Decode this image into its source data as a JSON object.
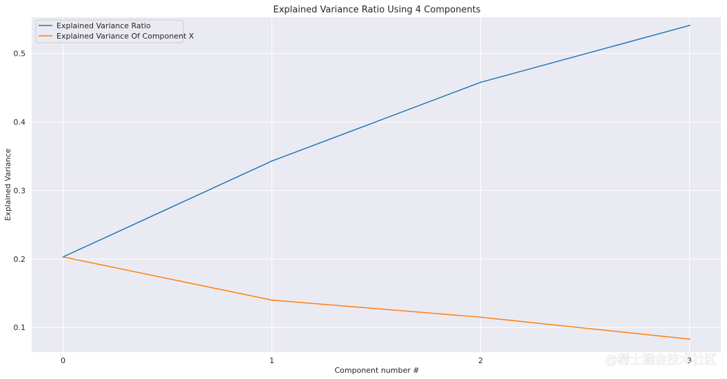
{
  "chart_data": {
    "type": "line",
    "title": "Explained Variance Ratio Using 4 Components",
    "xlabel": "Component number #",
    "ylabel": "Explained Variance",
    "x": [
      0,
      1,
      2,
      3
    ],
    "xticks": [
      "0",
      "1",
      "2",
      "3"
    ],
    "yticks": [
      "0.1",
      "0.2",
      "0.3",
      "0.4",
      "0.5"
    ],
    "ytick_values": [
      0.1,
      0.2,
      0.3,
      0.4,
      0.5
    ],
    "xlim": [
      -0.15,
      3.15
    ],
    "ylim": [
      0.064,
      0.553
    ],
    "grid": true,
    "legend_position": "top-left",
    "background_color": "#eaeaf2",
    "grid_color": "#ffffff",
    "series": [
      {
        "name": "Explained Variance Ratio",
        "color": "#1f77b4",
        "values": [
          0.203,
          0.343,
          0.458,
          0.541
        ]
      },
      {
        "name": "Explained Variance Of Component X",
        "color": "#ff7f0e",
        "values": [
          0.203,
          0.14,
          0.115,
          0.083
        ]
      }
    ]
  },
  "watermark": "@稀土掘金技术社区"
}
